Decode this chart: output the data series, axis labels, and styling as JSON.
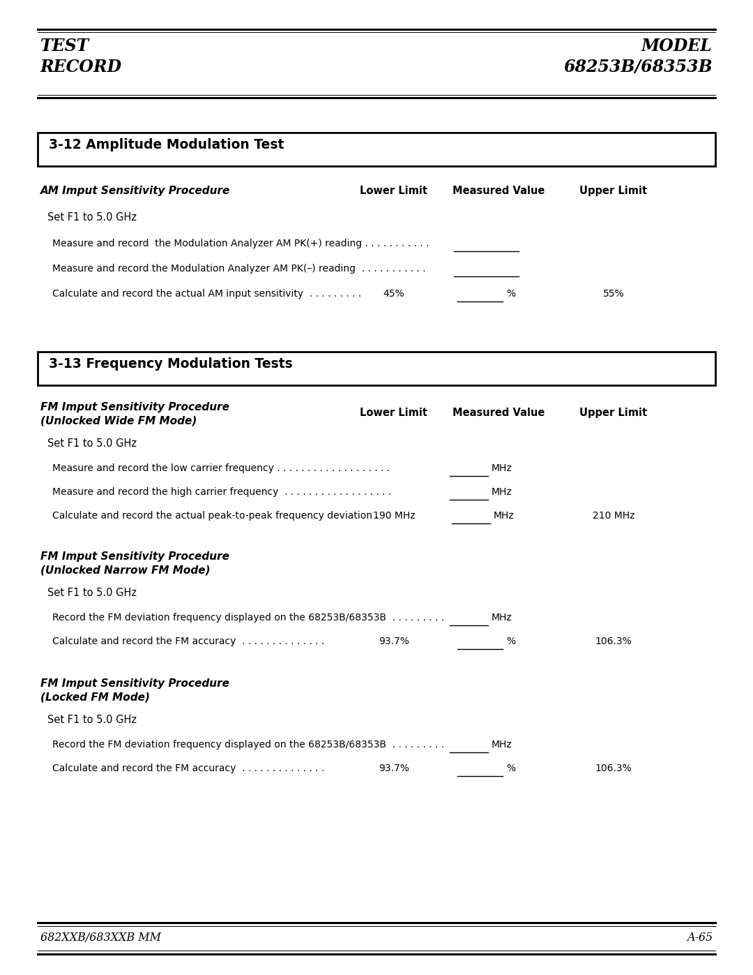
{
  "bg_color": "#ffffff",
  "header_left1": "TEST",
  "header_left2": "RECORD",
  "header_right1": "MODEL",
  "header_right2": "68253B/68353B",
  "footer_left": "682XXB/683XXB MM",
  "footer_right": "A-65",
  "section1_title": "3-12 Amplitude Modulation Test",
  "section1_subsection": "AM Imput Sensitivity Procedure",
  "col1": "Lower Limit",
  "col2": "Measured Value",
  "col3": "Upper Limit",
  "s1_row0": "Set F1 to 5.0 GHz",
  "s1_row1": "Measure and record  the Modulation Analyzer AM PK(+) reading . . . . . . . . . . .",
  "s1_row2": "Measure and record the Modulation Analyzer AM PK(–) reading  . . . . . . . . . . .",
  "s1_row3": "Calculate and record the actual AM input sensitivity  . . . . . . . . .",
  "s1_row3_lower": "45%",
  "s1_row3_unit": "%",
  "s1_row3_upper": "55%",
  "section2_title": "3-13 Frequency Modulation Tests",
  "s2_sub1": "FM Imput Sensitivity Procedure",
  "s2_sub2": "(Unlocked Wide FM Mode)",
  "s2_row0": "Set F1 to 5.0 GHz",
  "s2_row1": "Measure and record the low carrier frequency . . . . . . . . . . . . . . . . . . .",
  "s2_row1_unit": "MHz",
  "s2_row2": "Measure and record the high carrier frequency  . . . . . . . . . . . . . . . . . .",
  "s2_row2_unit": "MHz",
  "s2_row3": "Calculate and record the actual peak-to-peak frequency deviation .",
  "s2_row3_lower": "190 MHz",
  "s2_row3_unit": "MHz",
  "s2_row3_upper": "210 MHz",
  "s3_sub1": "FM Imput Sensitivity Procedure",
  "s3_sub2": "(Unlocked Narrow FM Mode)",
  "s3_row0": "Set F1 to 5.0 GHz",
  "s3_row1": "Record the FM deviation frequency displayed on the 68253B/68353B  . . . . . . . . .",
  "s3_row1_unit": "MHz",
  "s3_row2": "Calculate and record the FM accuracy  . . . . . . . . . . . . . .",
  "s3_row2_lower": "93.7%",
  "s3_row2_unit": "%",
  "s3_row2_upper": "106.3%",
  "s4_sub1": "FM Imput Sensitivity Procedure",
  "s4_sub2": "(Locked FM Mode)",
  "s4_row0": "Set F1 to 5.0 GHz",
  "s4_row1": "Record the FM deviation frequency displayed on the 68253B/68353B  . . . . . . . . .",
  "s4_row1_unit": "MHz",
  "s4_row2": "Calculate and record the FM accuracy  . . . . . . . . . . . . . .",
  "s4_row2_lower": "93.7%",
  "s4_row2_unit": "%",
  "s4_row2_upper": "106.3%"
}
